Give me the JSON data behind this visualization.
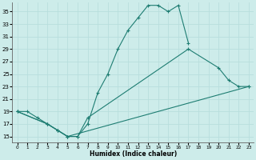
{
  "xlabel": "Humidex (Indice chaleur)",
  "bg_color": "#cdecea",
  "grid_color": "#b8dedd",
  "line_color": "#1e7d72",
  "xlim": [
    -0.5,
    23.5
  ],
  "ylim": [
    14,
    36.5
  ],
  "yticks": [
    15,
    17,
    19,
    21,
    23,
    25,
    27,
    29,
    31,
    33,
    35
  ],
  "xticks": [
    0,
    1,
    2,
    3,
    4,
    5,
    6,
    7,
    8,
    9,
    10,
    11,
    12,
    13,
    14,
    15,
    16,
    17,
    18,
    19,
    20,
    21,
    22,
    23
  ],
  "line1_x": [
    0,
    1,
    2,
    3,
    4,
    5,
    6,
    7,
    8,
    9,
    10,
    11,
    12,
    13,
    14,
    15,
    16,
    17
  ],
  "line1_y": [
    19,
    19,
    18,
    17,
    16,
    15,
    15,
    17,
    22,
    25,
    29,
    32,
    34,
    36,
    36,
    35,
    36,
    30
  ],
  "line2_x": [
    0,
    3,
    4,
    5,
    6,
    7,
    17,
    20,
    21,
    22,
    23
  ],
  "line2_y": [
    19,
    17,
    16,
    15,
    15,
    18,
    29,
    26,
    24,
    23,
    23
  ],
  "line3_x": [
    0,
    3,
    4,
    5,
    23
  ],
  "line3_y": [
    19,
    17,
    16,
    15,
    23
  ]
}
